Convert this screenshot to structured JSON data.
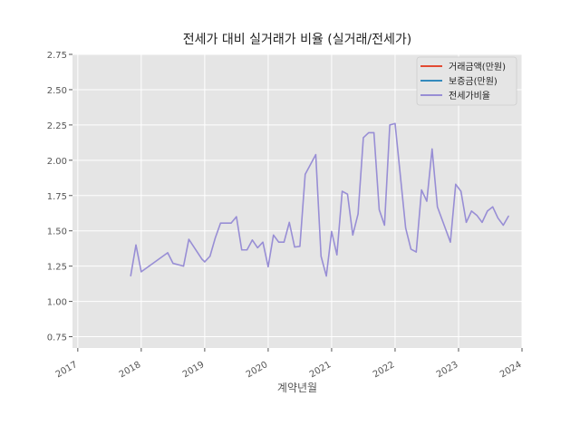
{
  "chart_data": {
    "type": "line",
    "title": "전세가 대비 실거래가 비율 (실거래/전세가)",
    "xlabel": "계약년월",
    "ylabel": "",
    "x_ticks": [
      "2017",
      "2018",
      "2019",
      "2020",
      "2021",
      "2022",
      "2023",
      "2024"
    ],
    "y_ticks": [
      "0.75",
      "1.00",
      "1.25",
      "1.50",
      "1.75",
      "2.00",
      "2.25",
      "2.50",
      "2.75"
    ],
    "xlim": [
      "2016-12-01",
      "2024-01-01"
    ],
    "ylim": [
      0.67,
      2.75
    ],
    "grid": true,
    "legend_position": "upper right",
    "colors": {
      "plot_background": "#e5e5e5",
      "grid": "#ffffff",
      "series_line": "#988ed5",
      "legend_red": "#e24a33",
      "legend_blue": "#348abd",
      "text": "#555555"
    },
    "legend": [
      {
        "name": "거래금액(만원)",
        "color": "#e24a33"
      },
      {
        "name": "보증금(만원)",
        "color": "#348abd"
      },
      {
        "name": "전세가비율",
        "color": "#988ed5"
      }
    ],
    "series": [
      {
        "name": "전세가비율",
        "color": "#988ed5",
        "points": [
          [
            "2017-11-01",
            1.18
          ],
          [
            "2017-12-01",
            1.4
          ],
          [
            "2018-01-01",
            1.21
          ],
          [
            "2018-06-01",
            1.345
          ],
          [
            "2018-07-01",
            1.27
          ],
          [
            "2018-09-01",
            1.25
          ],
          [
            "2018-10-01",
            1.44
          ],
          [
            "2018-12-15",
            1.3
          ],
          [
            "2019-01-01",
            1.28
          ],
          [
            "2019-02-01",
            1.32
          ],
          [
            "2019-03-01",
            1.45
          ],
          [
            "2019-04-01",
            1.555
          ],
          [
            "2019-06-01",
            1.555
          ],
          [
            "2019-07-01",
            1.6
          ],
          [
            "2019-08-01",
            1.365
          ],
          [
            "2019-09-01",
            1.365
          ],
          [
            "2019-10-01",
            1.435
          ],
          [
            "2019-11-01",
            1.38
          ],
          [
            "2019-12-01",
            1.42
          ],
          [
            "2020-01-01",
            1.245
          ],
          [
            "2020-02-01",
            1.47
          ],
          [
            "2020-03-01",
            1.42
          ],
          [
            "2020-04-01",
            1.42
          ],
          [
            "2020-05-01",
            1.56
          ],
          [
            "2020-06-01",
            1.385
          ],
          [
            "2020-07-01",
            1.39
          ],
          [
            "2020-08-01",
            1.9
          ],
          [
            "2020-10-01",
            2.04
          ],
          [
            "2020-11-01",
            1.32
          ],
          [
            "2020-12-01",
            1.18
          ],
          [
            "2021-01-01",
            1.495
          ],
          [
            "2021-02-01",
            1.33
          ],
          [
            "2021-03-01",
            1.78
          ],
          [
            "2021-04-01",
            1.76
          ],
          [
            "2021-05-01",
            1.47
          ],
          [
            "2021-06-01",
            1.62
          ],
          [
            "2021-07-01",
            2.16
          ],
          [
            "2021-08-01",
            2.195
          ],
          [
            "2021-09-01",
            2.195
          ],
          [
            "2021-10-01",
            1.65
          ],
          [
            "2021-11-01",
            1.54
          ],
          [
            "2021-12-01",
            2.25
          ],
          [
            "2022-01-01",
            2.26
          ],
          [
            "2022-03-01",
            1.52
          ],
          [
            "2022-04-01",
            1.37
          ],
          [
            "2022-05-01",
            1.35
          ],
          [
            "2022-06-01",
            1.79
          ],
          [
            "2022-07-01",
            1.71
          ],
          [
            "2022-08-01",
            2.08
          ],
          [
            "2022-09-01",
            1.67
          ],
          [
            "2022-11-15",
            1.42
          ],
          [
            "2022-12-15",
            1.83
          ],
          [
            "2023-01-15",
            1.78
          ],
          [
            "2023-02-15",
            1.56
          ],
          [
            "2023-03-15",
            1.64
          ],
          [
            "2023-04-15",
            1.61
          ],
          [
            "2023-05-15",
            1.56
          ],
          [
            "2023-06-15",
            1.64
          ],
          [
            "2023-07-15",
            1.67
          ],
          [
            "2023-08-15",
            1.59
          ],
          [
            "2023-09-15",
            1.54
          ],
          [
            "2023-10-15",
            1.605
          ]
        ]
      }
    ]
  }
}
